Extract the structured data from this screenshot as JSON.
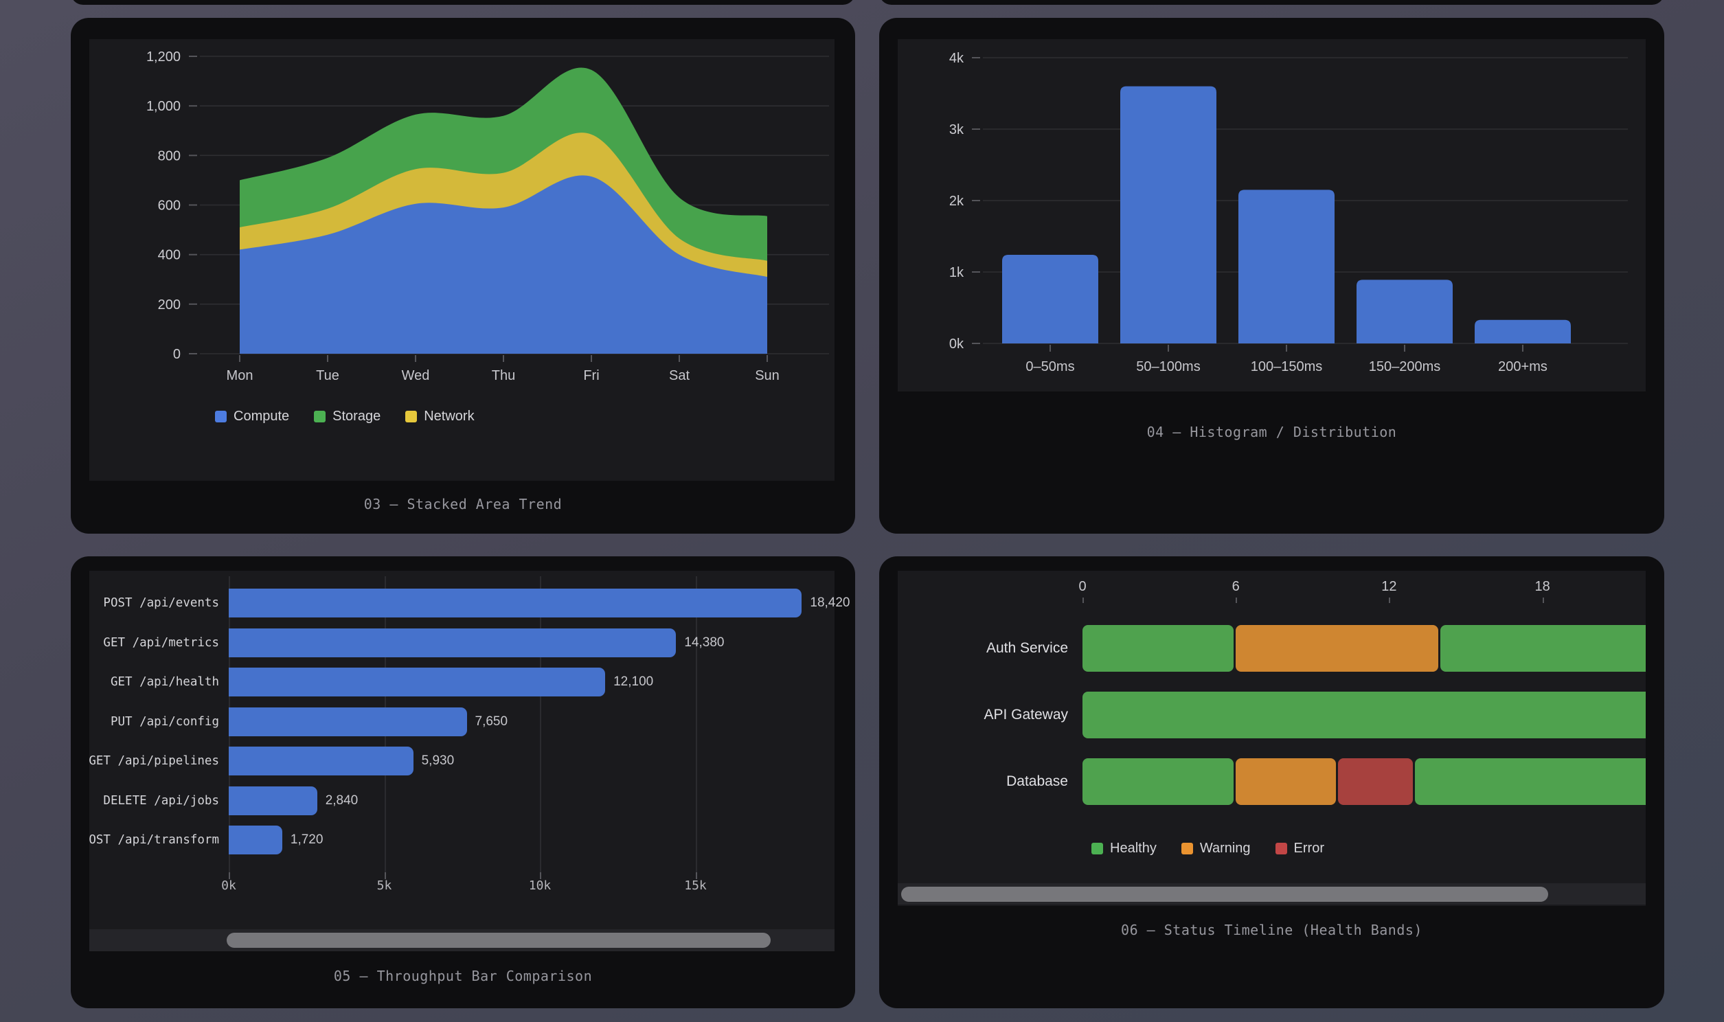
{
  "page": {
    "background_top": "#504e5e",
    "background_bottom": "#3e4452",
    "card_color": "#0e0e10",
    "plot_bg_color": "#1a1a1d"
  },
  "chart_data": [
    {
      "type": "area",
      "title": "03 — Stacked Area Trend",
      "stacked": true,
      "categories": [
        "Mon",
        "Tue",
        "Wed",
        "Thu",
        "Fri",
        "Sat",
        "Sun"
      ],
      "series": [
        {
          "name": "Compute",
          "color": "#4672cc",
          "values": [
            420,
            480,
            605,
            590,
            715,
            400,
            310
          ]
        },
        {
          "name": "Network",
          "color": "#d4b93a",
          "values": [
            90,
            105,
            140,
            140,
            170,
            65,
            65
          ]
        },
        {
          "name": "Storage",
          "color": "#47a34c",
          "values": [
            190,
            205,
            220,
            230,
            260,
            165,
            180
          ]
        }
      ],
      "stack_order_note": "bottom-to-top: Compute, Network, Storage",
      "legend": [
        {
          "label": "Compute",
          "color": "#4d7ce0"
        },
        {
          "label": "Storage",
          "color": "#4cb152"
        },
        {
          "label": "Network",
          "color": "#e6c83c"
        }
      ],
      "ylim": [
        0,
        1200
      ],
      "y_ticks": [
        {
          "value": 1200,
          "label": "1,200"
        },
        {
          "value": 1000,
          "label": "1,000"
        },
        {
          "value": 800,
          "label": "800"
        },
        {
          "value": 600,
          "label": "600"
        },
        {
          "value": 400,
          "label": "400"
        },
        {
          "value": 200,
          "label": "200"
        },
        {
          "value": 0,
          "label": "0"
        }
      ],
      "grid": true,
      "legend_position": "bottom-left"
    },
    {
      "type": "bar",
      "title": "04 — Histogram / Distribution",
      "categories": [
        "0–50ms",
        "50–100ms",
        "100–150ms",
        "150–200ms",
        "200+ms"
      ],
      "values": [
        1240,
        3600,
        2150,
        890,
        330
      ],
      "bar_color": "#4672cc",
      "ylim": [
        0,
        4000
      ],
      "y_ticks": [
        {
          "value": 4000,
          "label": "4k"
        },
        {
          "value": 3000,
          "label": "3k"
        },
        {
          "value": 2000,
          "label": "2k"
        },
        {
          "value": 1000,
          "label": "1k"
        },
        {
          "value": 0,
          "label": "0k"
        }
      ],
      "grid": true
    },
    {
      "type": "bar-horizontal",
      "title": "05 — Throughput Bar Comparison",
      "categories": [
        "POST /api/events",
        "GET /api/metrics",
        "GET /api/health",
        "PUT /api/config",
        "GET /api/pipelines",
        "DELETE /api/jobs",
        "POST /api/transform"
      ],
      "values": [
        18420,
        14380,
        12100,
        7650,
        5930,
        2840,
        1720
      ],
      "value_labels": [
        "18,420",
        "14,380",
        "12,100",
        "7,650",
        "5,930",
        "2,840",
        "1,720"
      ],
      "bar_color": "#4672cc",
      "xlim": [
        0,
        19500
      ],
      "x_ticks": [
        {
          "value": 0,
          "label": "0k"
        },
        {
          "value": 5000,
          "label": "5k"
        },
        {
          "value": 10000,
          "label": "10k"
        },
        {
          "value": 15000,
          "label": "15k"
        }
      ],
      "grid": true,
      "has_horizontal_scrollbar": true
    },
    {
      "type": "timeline",
      "title": "06 — Status Timeline (Health Bands)",
      "x_ticks": [
        {
          "value": 0,
          "label": "0"
        },
        {
          "value": 6,
          "label": "6"
        },
        {
          "value": 12,
          "label": "12"
        },
        {
          "value": 18,
          "label": "18"
        }
      ],
      "rows": [
        {
          "label": "Auth Service",
          "segments": [
            {
              "status": "Healthy",
              "start": 0,
              "end": 6
            },
            {
              "status": "Warning",
              "start": 6,
              "end": 14
            },
            {
              "status": "Healthy",
              "start": 14,
              "end": 24
            }
          ]
        },
        {
          "label": "API Gateway",
          "segments": [
            {
              "status": "Healthy",
              "start": 0,
              "end": 24
            }
          ]
        },
        {
          "label": "Database",
          "segments": [
            {
              "status": "Healthy",
              "start": 0,
              "end": 6
            },
            {
              "status": "Warning",
              "start": 6,
              "end": 10
            },
            {
              "status": "Error",
              "start": 10,
              "end": 13
            },
            {
              "status": "Healthy",
              "start": 13,
              "end": 24
            }
          ]
        }
      ],
      "status_colors": {
        "Healthy": "#4fa24e",
        "Warning": "#cf8631",
        "Error": "#a7413e"
      },
      "legend": [
        {
          "label": "Healthy",
          "color": "#4cb152"
        },
        {
          "label": "Warning",
          "color": "#ea9330"
        },
        {
          "label": "Error",
          "color": "#c24646"
        }
      ],
      "has_horizontal_scrollbar": true
    }
  ]
}
